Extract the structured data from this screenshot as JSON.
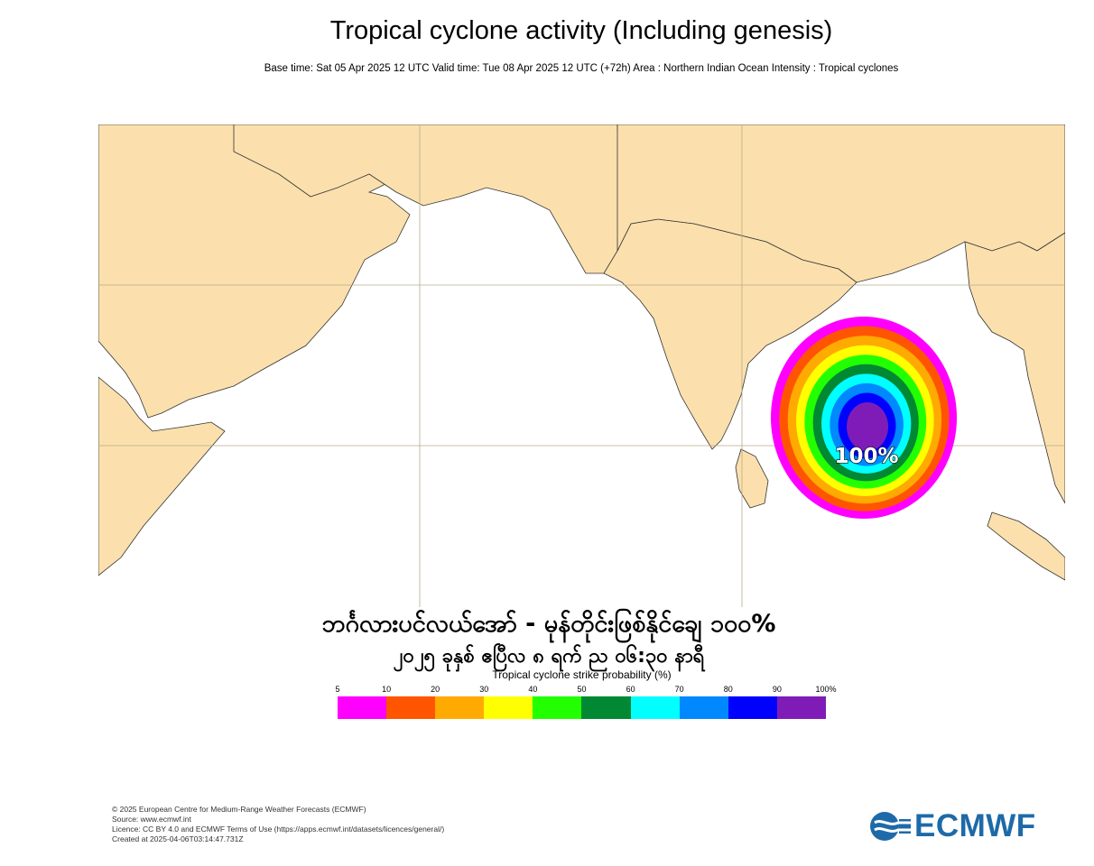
{
  "header": {
    "title": "Tropical cyclone activity (Including genesis)",
    "subtitle": "Base time: Sat 05 Apr 2025 12 UTC Valid time: Tue 08 Apr 2025 12 UTC (+72h) Area : Northern Indian Ocean Intensity : Tropical cyclones"
  },
  "map": {
    "region": "Northern Indian Ocean",
    "land_color": "#fbe0ad",
    "sea_color": "#ffffff",
    "peak_label": "100%",
    "peak_probability": 100
  },
  "overlay": {
    "line1": "ဘင်္ဂလားပင်လယ်အော် - မုန်တိုင်းဖြစ်နိုင်ချေ ၁၀၀%",
    "line2": "၂၀၂၅ ခုနှစ် ဧပြီလ ၈ ရက် ည ၀၆:၃၀ နာရီ"
  },
  "legend": {
    "title": "Tropical cyclone strike probability (%)",
    "ticks": [
      "5",
      "10",
      "20",
      "30",
      "40",
      "50",
      "60",
      "70",
      "80",
      "90",
      "100%"
    ],
    "colors": [
      "#ff00ff",
      "#ff5500",
      "#ffaa00",
      "#ffff00",
      "#22ff00",
      "#008833",
      "#00ffff",
      "#0088ff",
      "#0000ff",
      "#7f1cb8"
    ]
  },
  "footer": {
    "line1": "© 2025 European Centre for Medium-Range Weather Forecasts (ECMWF)",
    "line2": "Source: www.ecmwf.int",
    "line3": "Licence: CC BY 4.0 and ECMWF Terms of Use (https://apps.ecmwf.int/datasets/licences/general/)",
    "line4": "Created at 2025-04-06T03:14:47.731Z"
  },
  "logo": {
    "text": "ECMWF",
    "color": "#1e6aa8"
  }
}
